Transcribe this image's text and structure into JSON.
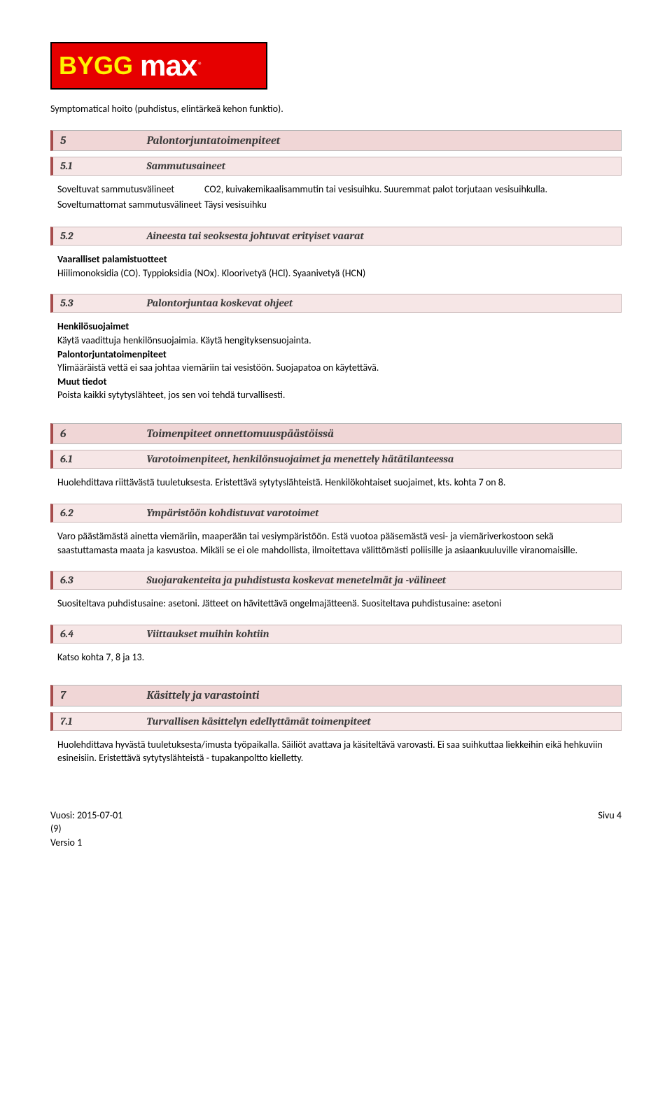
{
  "logo": {
    "part1": "BYGG",
    "part2": "max",
    "reg": "®"
  },
  "intro_line": "Symptomatical hoito (puhdistus, elintärkeä kehon funktio).",
  "s5": {
    "num": "5",
    "title": "Palontorjuntatoimenpiteet",
    "s1": {
      "num": "5.1",
      "title": "Sammutusaineet",
      "row1_label": "Soveltuvat sammutusvälineet",
      "row1_value": "CO2, kuivakemikaalisammutin tai vesisuihku. Suuremmat palot torjutaan vesisuihkulla.",
      "row2_label": "Soveltumattomat sammutusvälineet",
      "row2_value": "Täysi vesisuihku"
    },
    "s2": {
      "num": "5.2",
      "title": "Aineesta tai seoksesta johtuvat erityiset vaarat",
      "h1": "Vaaralliset palamistuotteet",
      "p1": "Hiilimonoksidia (CO). Typpioksidia (NOx). Kloorivetyä (HCl). Syaanivetyä (HCN)"
    },
    "s3": {
      "num": "5.3",
      "title": "Palontorjuntaa koskevat ohjeet",
      "h1": "Henkilösuojaimet",
      "p1": "Käytä vaadittuja henkilönsuojaimia. Käytä hengityksensuojainta.",
      "h2": "Palontorjuntatoimenpiteet",
      "p2": "Ylimääräistä vettä ei saa johtaa viemäriin tai vesistöön. Suojapatoa on käytettävä.",
      "h3": "Muut tiedot",
      "p3": "Poista kaikki sytytyslähteet, jos sen voi tehdä turvallisesti."
    }
  },
  "s6": {
    "num": "6",
    "title": "Toimenpiteet onnettomuuspäästöissä",
    "s1": {
      "num": "6.1",
      "title": "Varotoimenpiteet, henkilönsuojaimet ja menettely hätätilanteessa",
      "p1": "Huolehdittava riittävästä tuuletuksesta. Eristettävä sytytyslähteistä. Henkilökohtaiset suojaimet, kts. kohta 7 on 8."
    },
    "s2": {
      "num": "6.2",
      "title": "Ympäristöön kohdistuvat varotoimet",
      "p1": "Varo päästämästä ainetta viemäriin, maaperään tai vesiympäristöön. Estä vuotoa pääsemästä vesi- ja viemäriverkostoon sekä saastuttamasta maata ja kasvustoa. Mikäli se ei ole mahdollista, ilmoitettava välittömästi poliisille ja asiaankuuluville viranomaisille."
    },
    "s3": {
      "num": "6.3",
      "title": "Suojarakenteita ja puhdistusta koskevat menetelmät ja -välineet",
      "p1": "Suositeltava puhdistusaine: asetoni. Jätteet on hävitettävä ongelmajätteenä. Suositeltava puhdistusaine: asetoni"
    },
    "s4": {
      "num": "6.4",
      "title": "Viittaukset muihin kohtiin",
      "p1": "Katso kohta 7, 8 ja 13."
    }
  },
  "s7": {
    "num": "7",
    "title": "Käsittely ja varastointi",
    "s1": {
      "num": "7.1",
      "title": "Turvallisen käsittelyn edellyttämät toimenpiteet",
      "p1": "Huolehdittava hyvästä tuuletuksesta/imusta työpaikalla. Säiliöt avattava ja käsiteltävä varovasti. Ei saa suihkuttaa liekkeihin eikä hehkuviin esineisiin. Eristettävä sytytyslähteistä - tupakanpoltto kielletty."
    }
  },
  "footer": {
    "year": "Vuosi: 2015-07-01",
    "pages": "(9)",
    "version": "Versio 1",
    "right": "Sivu 4"
  }
}
